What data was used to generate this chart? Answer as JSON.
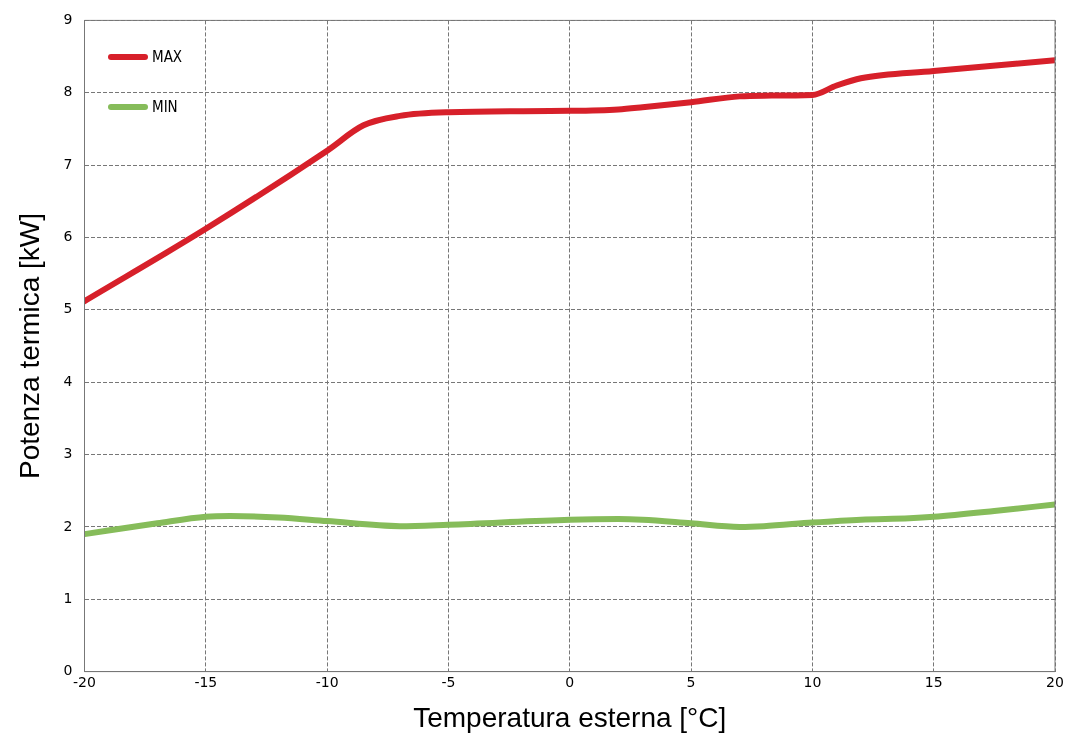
{
  "chart_data": {
    "type": "line",
    "xlabel": "Temperatura esterna [°C]",
    "ylabel": "Potenza termica [kW]",
    "xlim": [
      -20,
      20
    ],
    "xticks": [
      -20,
      -15,
      -10,
      -5,
      0,
      5,
      10,
      15,
      20
    ],
    "ylim": [
      0,
      9
    ],
    "yticks": [
      0,
      1,
      2,
      3,
      4,
      5,
      6,
      7,
      8,
      9
    ],
    "grid": true,
    "legend": "top left",
    "marker": "none",
    "line_style": "solid",
    "series": [
      {
        "name": "MAX",
        "color": "#d7202a",
        "x": [
          -20,
          -15,
          -10,
          -8.5,
          -7,
          -5,
          0,
          2,
          3,
          5,
          7,
          8,
          10,
          11,
          12,
          15,
          20
        ],
        "values": [
          5.12,
          6.12,
          7.2,
          7.55,
          7.68,
          7.73,
          7.75,
          7.77,
          7.8,
          7.87,
          7.95,
          7.96,
          7.97,
          8.1,
          8.2,
          8.3,
          8.45
        ]
      },
      {
        "name": "MIN",
        "color": "#86bc5a",
        "x": [
          -20,
          -17,
          -15,
          -14,
          -12,
          -10,
          -7,
          -5,
          0,
          2,
          3,
          5,
          7,
          8,
          10,
          12,
          14,
          15,
          17.5,
          20
        ],
        "values": [
          1.9,
          2.05,
          2.14,
          2.15,
          2.13,
          2.08,
          2.01,
          2.03,
          2.1,
          2.11,
          2.1,
          2.05,
          2.0,
          2.01,
          2.06,
          2.1,
          2.12,
          2.14,
          2.22,
          2.31
        ]
      }
    ]
  }
}
